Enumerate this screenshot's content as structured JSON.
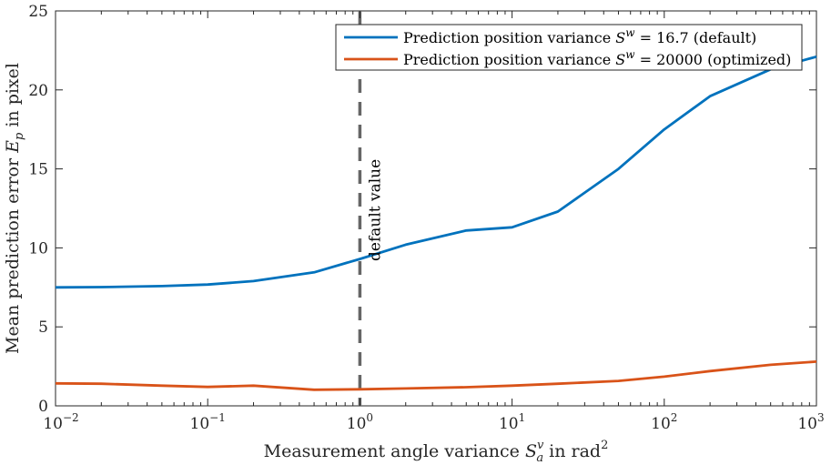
{
  "chart_data": {
    "type": "line",
    "x_scale": "log",
    "xlim": [
      0.01,
      1000
    ],
    "ylim": [
      0,
      25
    ],
    "x_ticks": [
      {
        "value": 0.01,
        "base": "10",
        "exp": "−2"
      },
      {
        "value": 0.1,
        "base": "10",
        "exp": "−1"
      },
      {
        "value": 1,
        "base": "10",
        "exp": "0"
      },
      {
        "value": 10,
        "base": "10",
        "exp": "1"
      },
      {
        "value": 100,
        "base": "10",
        "exp": "2"
      },
      {
        "value": 1000,
        "base": "10",
        "exp": "3"
      }
    ],
    "y_ticks": [
      "0",
      "5",
      "10",
      "15",
      "20",
      "25"
    ],
    "xlabel": {
      "prefix": "Measurement angle variance ",
      "sym": "S",
      "sup": "v",
      "sub": "a",
      "suffix": " in rad",
      "unit_sup": "2"
    },
    "ylabel": {
      "prefix": "Mean prediction error ",
      "sym": "E",
      "sub": "p",
      "suffix": " in pixel"
    },
    "series": [
      {
        "name": "Prediction position variance S^w = 16.7 (default)",
        "legend": {
          "prefix": "Prediction position variance ",
          "sym": "S",
          "sup": "w",
          "suffix": " = 16.7 (default)"
        },
        "color": "#0072BD",
        "x": [
          0.01,
          0.02,
          0.05,
          0.1,
          0.2,
          0.5,
          1,
          2,
          5,
          10,
          20,
          50,
          100,
          200,
          500,
          1000
        ],
        "y": [
          7.5,
          7.52,
          7.58,
          7.68,
          7.9,
          8.45,
          9.3,
          10.2,
          11.1,
          11.3,
          12.3,
          15.0,
          17.5,
          19.6,
          21.3,
          22.1
        ]
      },
      {
        "name": "Prediction position variance S^w = 20000 (optimized)",
        "legend": {
          "prefix": "Prediction position variance ",
          "sym": "S",
          "sup": "w",
          "suffix": " = 20000 (optimized)"
        },
        "color": "#D95319",
        "x": [
          0.01,
          0.02,
          0.05,
          0.1,
          0.2,
          0.5,
          1,
          2,
          5,
          10,
          20,
          50,
          100,
          200,
          500,
          1000
        ],
        "y": [
          1.42,
          1.4,
          1.28,
          1.2,
          1.28,
          1.02,
          1.05,
          1.1,
          1.18,
          1.28,
          1.4,
          1.58,
          1.85,
          2.2,
          2.6,
          2.8
        ]
      }
    ],
    "reference_line": {
      "x": 1,
      "style": "dashed",
      "color": "#666666"
    },
    "annotation": {
      "text": "default value",
      "x": 1,
      "orientation": "vertical"
    },
    "legend_position": "top-right",
    "grid": false
  }
}
